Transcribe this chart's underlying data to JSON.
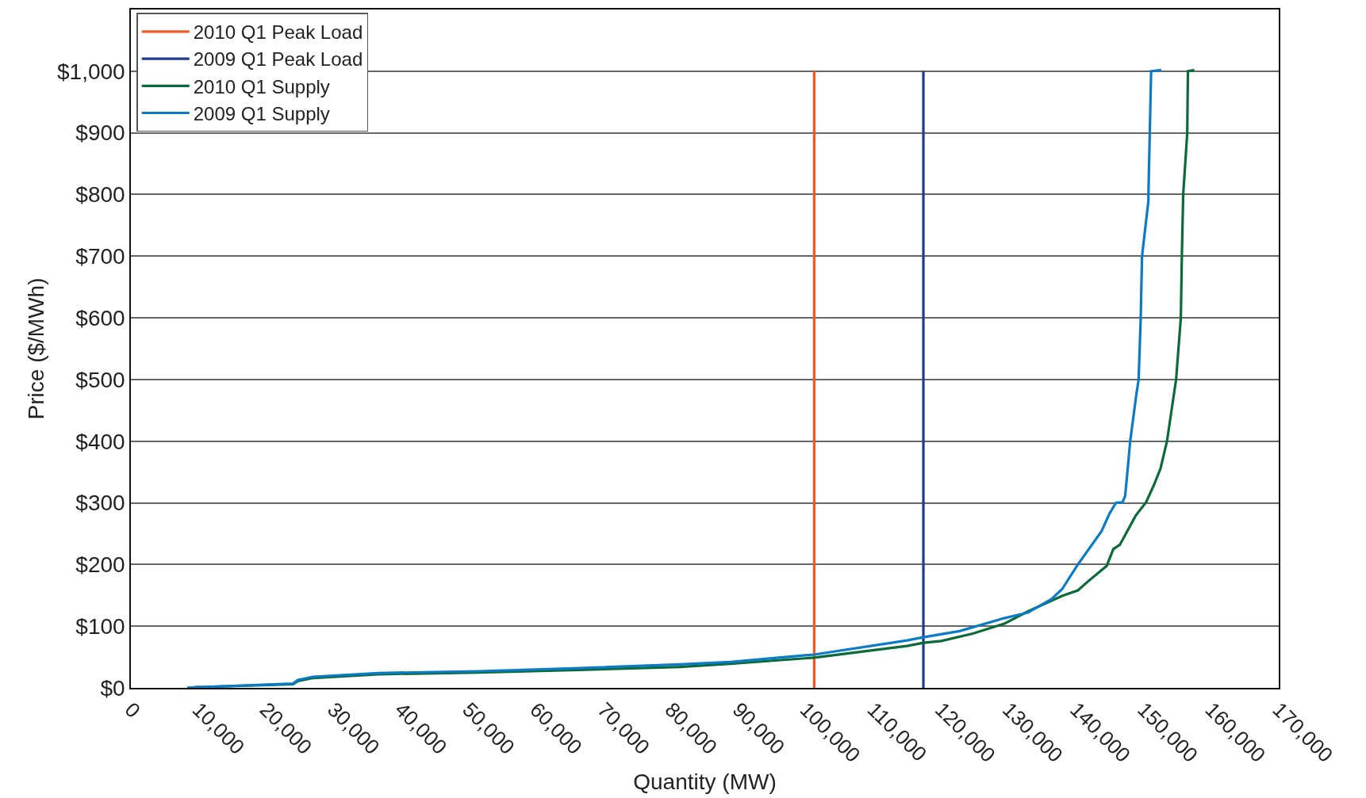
{
  "chart_data": {
    "type": "line",
    "xlabel": "Quantity (MW)",
    "ylabel": "Price ($/MWh)",
    "xlim": [
      0,
      170000
    ],
    "xticks": [
      0,
      {
        "value": 10000,
        "label": "10,000"
      },
      {
        "value": 20000,
        "label": "20,000"
      },
      {
        "value": 30000,
        "label": "30,000"
      },
      {
        "value": 40000,
        "label": "40,000"
      },
      {
        "value": 50000,
        "label": "50,000"
      },
      {
        "value": 60000,
        "label": "60,000"
      },
      {
        "value": 70000,
        "label": "70,000"
      },
      {
        "value": 80000,
        "label": "80,000"
      },
      {
        "value": 90000,
        "label": "90,000"
      },
      {
        "value": 100000,
        "label": "100,000"
      },
      {
        "value": 110000,
        "label": "110,000"
      },
      {
        "value": 120000,
        "label": "120,000"
      },
      {
        "value": 130000,
        "label": "130,000"
      },
      {
        "value": 140000,
        "label": "140,000"
      },
      {
        "value": 150000,
        "label": "150,000"
      },
      {
        "value": 160000,
        "label": "160,000"
      },
      {
        "value": 170000,
        "label": "170,000"
      }
    ],
    "ylim": [
      0,
      1100
    ],
    "yticks": [
      {
        "value": 0,
        "label": "$0"
      },
      {
        "value": 100,
        "label": "$100"
      },
      {
        "value": 200,
        "label": "$200"
      },
      {
        "value": 300,
        "label": "$300"
      },
      {
        "value": 400,
        "label": "$400"
      },
      {
        "value": 500,
        "label": "$500"
      },
      {
        "value": 600,
        "label": "$600"
      },
      {
        "value": 700,
        "label": "$700"
      },
      {
        "value": 800,
        "label": "$800"
      },
      {
        "value": 900,
        "label": "$900"
      },
      {
        "value": 1000,
        "label": "$1,000"
      }
    ],
    "grid": "y",
    "legend": "top left",
    "marker": "none",
    "line_style": "solid",
    "series": [
      {
        "name": "2010 Q1 Peak Load",
        "color": "#f05a28",
        "x": [
          101200,
          101200
        ],
        "values": [
          0,
          1000
        ]
      },
      {
        "name": "2009 Q1 Peak Load",
        "color": "#1f3a93",
        "x": [
          117370,
          117370
        ],
        "values": [
          0,
          1000
        ]
      },
      {
        "name": "2010 Q1 Supply",
        "color": "#0b6b38",
        "x": [
          8380,
          9870,
          24010,
          24750,
          26990,
          36660,
          51540,
          66420,
          81300,
          88740,
          101200,
          114960,
          117370,
          120020,
          124690,
          129350,
          132850,
          137910,
          140250,
          141800,
          144530,
          145500,
          146470,
          148800,
          150360,
          151520,
          152500,
          153450,
          154800,
          155500,
          155650,
          155850,
          156450,
          156550,
          157500
        ],
        "values": [
          0,
          1,
          6,
          11,
          16,
          22,
          25,
          29,
          34,
          39,
          49,
          68,
          73,
          76,
          88,
          104,
          124,
          149,
          158,
          173,
          198,
          225,
          232,
          279,
          301,
          329,
          356,
          400,
          500,
          600,
          700,
          800,
          900,
          1000,
          1002
        ]
      },
      {
        "name": "2009 Q1 Supply",
        "color": "#0a7bc8",
        "x": [
          8380,
          9870,
          24010,
          24750,
          26990,
          36660,
          51540,
          66420,
          81300,
          88740,
          101200,
          114960,
          117370,
          122740,
          129350,
          132850,
          136350,
          137910,
          140250,
          143750,
          144910,
          145890,
          146860,
          147250,
          147640,
          148000,
          148900,
          149250,
          149560,
          149750,
          150700,
          150700,
          150900,
          151100,
          152600
        ],
        "values": [
          0,
          1,
          7,
          13,
          18,
          24,
          27,
          32,
          38,
          42,
          54,
          77,
          82,
          92,
          113,
          122,
          144,
          160,
          200,
          254,
          282,
          300,
          301,
          311,
          356,
          400,
          475,
          500,
          600,
          700,
          790,
          800,
          900,
          1000,
          1002
        ]
      }
    ]
  }
}
